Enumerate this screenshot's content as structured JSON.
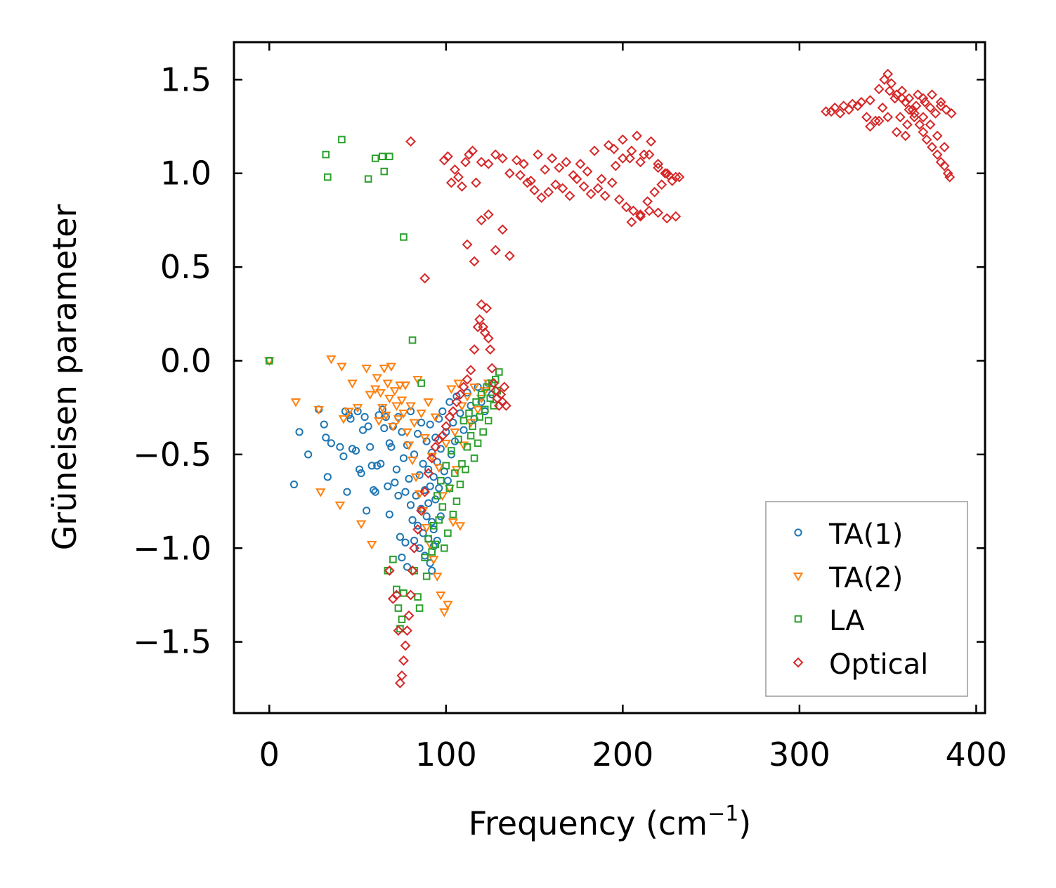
{
  "chart_data": {
    "type": "scatter",
    "title": "",
    "xlabel": "Frequency (cm",
    "xlabel_sup": "−1",
    "xlabel_close": ")",
    "ylabel": "Grüneisen parameter",
    "xlim": [
      -20,
      405
    ],
    "ylim": [
      -1.88,
      1.7
    ],
    "xticks": [
      0,
      100,
      200,
      300,
      400
    ],
    "xtick_labels": [
      "0",
      "100",
      "200",
      "300",
      "400"
    ],
    "yticks": [
      1.5,
      1.0,
      0.5,
      0.0,
      -0.5,
      -1.0,
      -1.5
    ],
    "ytick_labels": [
      "1.5",
      "1.0",
      "0.5",
      "0.0",
      "−0.5",
      "−1.0",
      "−1.5"
    ],
    "grid": false,
    "legend_position": "bottom-right",
    "series": [
      {
        "name": "TA(1)",
        "marker": "circle",
        "color": "#1f77b4",
        "x": [
          0,
          14,
          17,
          22,
          28,
          31,
          32,
          33,
          35,
          40,
          42,
          43,
          44,
          45,
          46,
          47,
          49,
          50,
          51,
          52,
          53,
          54,
          55,
          56,
          57,
          58,
          59,
          60,
          61,
          62,
          63,
          64,
          65,
          66,
          67,
          68,
          68,
          69,
          70,
          71,
          72,
          73,
          73,
          74,
          75,
          75,
          76,
          77,
          77,
          78,
          78,
          79,
          80,
          80,
          81,
          82,
          82,
          83,
          84,
          84,
          85,
          85,
          86,
          86,
          87,
          87,
          88,
          88,
          89,
          89,
          90,
          90,
          90,
          91,
          91,
          91,
          92,
          92,
          92,
          93,
          93,
          93,
          94,
          94,
          95,
          95,
          96,
          96,
          97,
          97,
          98,
          99,
          100,
          101,
          102,
          103,
          104,
          105,
          106,
          108,
          110,
          112,
          114,
          116,
          118,
          120,
          122,
          124,
          126
        ],
        "y": [
          0.0,
          -0.66,
          -0.38,
          -0.5,
          -0.26,
          -0.34,
          -0.41,
          -0.62,
          -0.44,
          -0.46,
          -0.51,
          -0.27,
          -0.7,
          -0.29,
          -0.31,
          -0.47,
          -0.48,
          -0.27,
          -0.58,
          -0.6,
          -0.37,
          -0.3,
          -0.8,
          -0.35,
          -0.46,
          -0.56,
          -0.69,
          -0.7,
          -0.56,
          -0.29,
          -0.55,
          -0.26,
          -0.36,
          -0.3,
          -0.67,
          -0.44,
          -0.82,
          -0.46,
          -0.35,
          -0.65,
          -0.58,
          -0.3,
          -0.72,
          -0.94,
          -0.38,
          -1.05,
          -0.52,
          -0.7,
          -0.97,
          -0.45,
          -1.1,
          -0.63,
          -0.27,
          -0.77,
          -0.85,
          -0.5,
          -0.96,
          -0.72,
          -0.39,
          -0.88,
          -0.61,
          -1.0,
          -0.33,
          -0.79,
          -0.55,
          -0.92,
          -0.69,
          -1.04,
          -0.43,
          -0.83,
          -0.58,
          -0.76,
          -0.95,
          -0.34,
          -0.67,
          -1.08,
          -0.49,
          -0.86,
          -1.12,
          -0.62,
          -0.9,
          -0.99,
          -0.41,
          -0.74,
          -0.54,
          -0.96,
          -0.31,
          -0.68,
          -0.47,
          -0.83,
          -0.27,
          -0.59,
          -0.38,
          -0.64,
          -0.22,
          -0.5,
          -0.33,
          -0.43,
          -0.19,
          -0.28,
          -0.37,
          -0.17,
          -0.24,
          -0.31,
          -0.14,
          -0.22,
          -0.27,
          -0.12,
          -0.18
        ]
      },
      {
        "name": "TA(2)",
        "marker": "triangle-down",
        "color": "#ff7f0e",
        "x": [
          0,
          15,
          28,
          29,
          35,
          40,
          41,
          42,
          45,
          47,
          50,
          52,
          55,
          57,
          58,
          60,
          61,
          62,
          63,
          64,
          65,
          66,
          67,
          68,
          69,
          70,
          71,
          72,
          73,
          74,
          75,
          76,
          77,
          78,
          79,
          80,
          81,
          82,
          83,
          84,
          85,
          86,
          87,
          88,
          89,
          90,
          91,
          92,
          93,
          94,
          95,
          96,
          97,
          98,
          99,
          100,
          101,
          102,
          103,
          104,
          105,
          106,
          107,
          108,
          109,
          110,
          112,
          114,
          116,
          118,
          120,
          122,
          124
        ],
        "y": [
          0.0,
          -0.22,
          -0.26,
          -0.7,
          0.01,
          -0.77,
          -0.03,
          -0.31,
          -0.27,
          -0.12,
          -0.25,
          -0.87,
          -0.04,
          -0.18,
          -0.98,
          -0.15,
          -0.09,
          -0.32,
          -0.17,
          -0.25,
          -0.04,
          -0.29,
          -0.12,
          -0.2,
          -0.03,
          -0.35,
          -0.16,
          -0.24,
          -0.31,
          -0.13,
          -0.21,
          -0.28,
          -0.13,
          -0.38,
          -0.45,
          -0.24,
          -0.53,
          -0.33,
          -0.62,
          -0.1,
          -0.71,
          -0.28,
          -0.8,
          -0.41,
          -0.89,
          -0.22,
          -0.98,
          -0.51,
          -1.06,
          -0.3,
          -1.15,
          -0.57,
          -1.25,
          -0.72,
          -1.34,
          -0.44,
          -1.3,
          -0.68,
          -0.15,
          -0.86,
          -0.38,
          -0.58,
          -0.12,
          -0.88,
          -0.24,
          -0.45,
          -0.19,
          -0.33,
          -0.14,
          -0.26,
          -0.2,
          -0.16,
          -0.12
        ]
      },
      {
        "name": "LA",
        "marker": "square",
        "color": "#2ca02c",
        "x": [
          0,
          32,
          33,
          41,
          56,
          60,
          64,
          65,
          68,
          67,
          70,
          72,
          73,
          74,
          75,
          76,
          76,
          81,
          82,
          84,
          85,
          86,
          88,
          89,
          90,
          92,
          93,
          94,
          95,
          96,
          97,
          98,
          99,
          100,
          101,
          102,
          103,
          104,
          105,
          106,
          107,
          108,
          109,
          110,
          111,
          112,
          113,
          114,
          115,
          116,
          117,
          118,
          119,
          120,
          121,
          122,
          123,
          124,
          125,
          126,
          127,
          128,
          129,
          130
        ],
        "y": [
          0.0,
          1.1,
          0.98,
          1.18,
          0.97,
          1.08,
          1.09,
          1.01,
          1.09,
          -1.12,
          -1.06,
          -1.22,
          -1.32,
          -1.43,
          -1.38,
          -1.24,
          0.66,
          0.11,
          -1.12,
          -1.26,
          -1.32,
          -0.12,
          -1.05,
          -1.15,
          -0.95,
          -1.02,
          -0.88,
          -0.98,
          -0.72,
          -0.85,
          -0.64,
          -0.78,
          -1.0,
          -0.56,
          -0.92,
          -0.68,
          -0.48,
          -0.82,
          -0.6,
          -0.75,
          -0.42,
          -0.66,
          -0.55,
          -0.32,
          -0.58,
          -0.46,
          -0.28,
          -0.4,
          -0.35,
          -0.52,
          -0.22,
          -0.44,
          -0.3,
          -0.18,
          -0.38,
          -0.26,
          -0.14,
          -0.32,
          -0.2,
          -0.12,
          -0.24,
          -0.1,
          -0.16,
          -0.06
        ]
      },
      {
        "name": "Optical",
        "marker": "diamond",
        "color": "#d62728",
        "x": [
          68,
          70,
          72,
          73,
          74,
          75,
          76,
          77,
          78,
          79,
          80,
          81,
          82,
          84,
          86,
          88,
          90,
          92,
          94,
          96,
          98,
          100,
          102,
          104,
          106,
          108,
          110,
          112,
          114,
          116,
          118,
          119,
          120,
          121,
          122,
          123,
          124,
          125,
          126,
          127,
          128,
          129,
          130,
          131,
          132,
          133,
          134,
          99,
          101,
          103,
          105,
          107,
          109,
          111,
          113,
          115,
          117,
          120,
          124,
          128,
          132,
          136,
          140,
          144,
          148,
          152,
          156,
          160,
          164,
          168,
          172,
          176,
          180,
          184,
          188,
          192,
          196,
          200,
          204,
          208,
          212,
          216,
          220,
          224,
          228,
          232,
          186,
          190,
          194,
          198,
          202,
          206,
          210,
          214,
          218,
          222,
          226,
          195,
          200,
          205,
          210,
          215,
          220,
          225,
          230,
          205,
          210,
          215,
          220,
          225,
          230,
          142,
          146,
          150,
          154,
          158,
          162,
          166,
          170,
          174,
          178,
          182,
          80,
          88,
          112,
          116,
          120,
          124,
          128,
          132,
          136,
          315,
          320,
          325,
          330,
          335,
          340,
          345,
          348,
          350,
          352,
          355,
          358,
          360,
          362,
          365,
          368,
          370,
          372,
          375,
          378,
          380,
          382,
          384,
          385,
          318,
          323,
          328,
          333,
          338,
          343,
          347,
          351,
          354,
          357,
          361,
          364,
          367,
          371,
          374,
          377,
          380,
          383,
          340,
          345,
          350,
          355,
          360,
          365,
          370,
          375,
          380,
          358,
          362,
          366,
          370,
          374,
          378,
          382,
          386
        ],
        "y": [
          -1.12,
          -1.27,
          -1.25,
          -1.44,
          -1.72,
          -1.68,
          -1.6,
          -1.52,
          -1.44,
          -1.36,
          -1.25,
          -1.12,
          -1.0,
          -0.9,
          -0.8,
          -0.7,
          -0.6,
          -0.52,
          -0.46,
          -0.42,
          -0.4,
          -0.35,
          -0.3,
          -0.27,
          -0.22,
          -0.18,
          -0.14,
          -0.1,
          -0.05,
          0.06,
          0.18,
          0.22,
          0.3,
          0.18,
          0.15,
          0.28,
          0.12,
          0.06,
          -0.04,
          -0.12,
          -0.16,
          -0.2,
          -0.24,
          -0.18,
          -0.22,
          -0.14,
          -0.24,
          1.07,
          1.09,
          0.95,
          1.02,
          0.98,
          0.93,
          1.06,
          1.1,
          1.12,
          0.95,
          1.06,
          1.05,
          1.1,
          1.08,
          1.0,
          1.07,
          1.05,
          0.96,
          1.1,
          1.02,
          1.08,
          1.03,
          1.06,
          0.99,
          1.05,
          1.01,
          1.12,
          0.97,
          1.15,
          1.04,
          1.18,
          1.08,
          1.2,
          1.1,
          1.17,
          1.05,
          1.0,
          0.96,
          0.98,
          0.92,
          0.88,
          0.95,
          0.86,
          0.82,
          0.8,
          0.78,
          0.85,
          0.9,
          0.94,
          0.99,
          1.13,
          1.08,
          1.12,
          1.06,
          1.1,
          1.03,
          1.0,
          0.98,
          0.74,
          0.77,
          0.8,
          0.79,
          0.76,
          0.77,
          0.99,
          0.95,
          0.91,
          0.87,
          0.9,
          0.94,
          0.92,
          0.88,
          0.97,
          0.93,
          0.89,
          1.17,
          0.44,
          0.62,
          0.53,
          0.75,
          0.78,
          0.59,
          0.7,
          0.56,
          1.33,
          1.35,
          1.36,
          1.37,
          1.38,
          1.39,
          1.45,
          1.5,
          1.53,
          1.48,
          1.42,
          1.4,
          1.38,
          1.34,
          1.3,
          1.26,
          1.22,
          1.18,
          1.14,
          1.1,
          1.06,
          1.04,
          1.0,
          0.98,
          1.33,
          1.32,
          1.34,
          1.36,
          1.3,
          1.28,
          1.35,
          1.44,
          1.4,
          1.3,
          1.26,
          1.34,
          1.42,
          1.38,
          1.35,
          1.32,
          1.36,
          1.34,
          1.25,
          1.28,
          1.3,
          1.22,
          1.2,
          1.32,
          1.4,
          1.42,
          1.38,
          1.44,
          1.4,
          1.36,
          1.3,
          1.26,
          1.2,
          1.14,
          1.32
        ]
      }
    ]
  }
}
